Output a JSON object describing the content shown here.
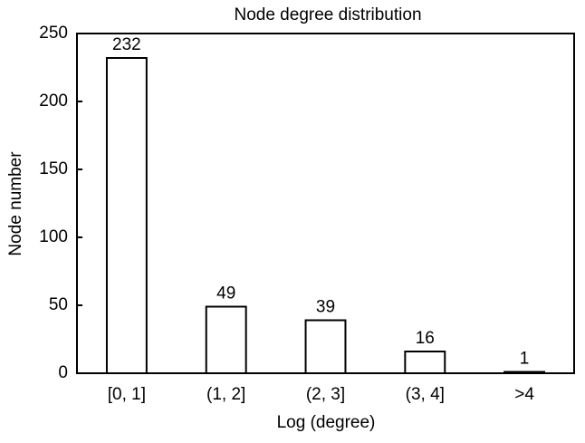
{
  "chart_data": {
    "type": "bar",
    "title": "Node degree distribution",
    "x_label": "Log (degree)",
    "y_label": "Node number",
    "categories": [
      "[0, 1]",
      "(1, 2]",
      "(2, 3]",
      "(3, 4]",
      ">4"
    ],
    "values": [
      232,
      49,
      39,
      16,
      1
    ],
    "color": "#ffffff",
    "edge_color": "#000000",
    "ylim": [
      0,
      250
    ],
    "yticks": [
      0,
      50,
      100,
      150,
      200,
      250
    ],
    "grid": false
  }
}
